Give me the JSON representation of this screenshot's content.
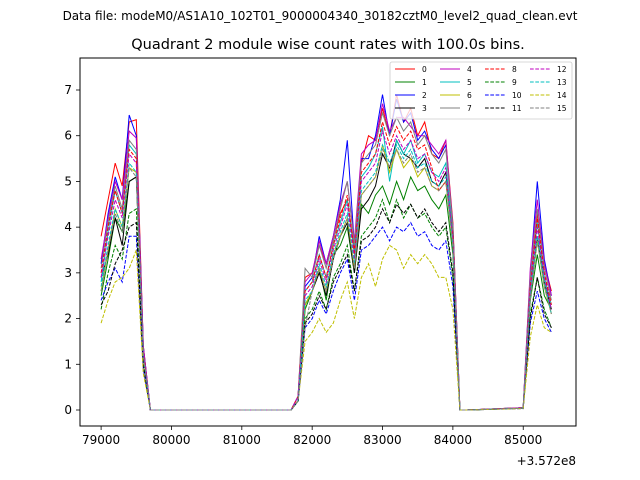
{
  "suptitle": "Data file: modeM0/AS1A10_102T01_9000004340_30182cztM0_level2_quad_clean.evt",
  "chart_data": {
    "type": "line",
    "title": "Quadrant 2 module wise count rates with 100.0s bins.",
    "xlabel": "",
    "ylabel": "",
    "x_offset_label": "+3.572e8",
    "xlim": [
      78700,
      85750
    ],
    "ylim": [
      -0.35,
      7.7
    ],
    "x_ticks": [
      79000,
      80000,
      81000,
      82000,
      83000,
      84000,
      85000
    ],
    "x_tick_labels": [
      "79000",
      "80000",
      "81000",
      "82000",
      "83000",
      "84000",
      "85000"
    ],
    "y_ticks": [
      0,
      1,
      2,
      3,
      4,
      5,
      6,
      7
    ],
    "y_tick_labels": [
      "0",
      "1",
      "2",
      "3",
      "4",
      "5",
      "6",
      "7"
    ],
    "grid": false,
    "legend_position": "top-right",
    "x": [
      79000,
      79100,
      79200,
      79300,
      79400,
      79500,
      79600,
      79700,
      79800,
      81700,
      81800,
      81900,
      82000,
      82100,
      82200,
      82300,
      82400,
      82500,
      82600,
      82700,
      82800,
      82900,
      83000,
      83100,
      83200,
      83300,
      83400,
      83500,
      83600,
      83700,
      83800,
      83900,
      84000,
      84100,
      84200,
      85000,
      85100,
      85200,
      85300,
      85400
    ],
    "series": [
      {
        "name": "0",
        "color": "#ff0000",
        "dash": false,
        "values": [
          3.8,
          4.6,
          5.4,
          4.9,
          6.3,
          6.35,
          1.4,
          0,
          0,
          0,
          0.3,
          2.9,
          3.0,
          3.6,
          3.2,
          3.7,
          4.3,
          4.6,
          3.5,
          5.4,
          6.0,
          5.9,
          6.6,
          6.0,
          6.9,
          6.3,
          6.6,
          6.0,
          6.3,
          5.6,
          5.5,
          5.9,
          4.1,
          0,
          0,
          0.05,
          2.9,
          4.3,
          3.2,
          2.6
        ]
      },
      {
        "name": "1",
        "color": "#008000",
        "dash": false,
        "values": [
          2.5,
          3.3,
          4.2,
          3.9,
          5.0,
          5.1,
          1.2,
          0,
          0,
          0,
          0.2,
          2.2,
          2.6,
          3.1,
          2.4,
          3.4,
          3.6,
          4.0,
          3.0,
          4.5,
          4.3,
          4.7,
          4.9,
          4.5,
          5.0,
          4.6,
          5.1,
          4.8,
          4.9,
          4.6,
          4.4,
          4.7,
          3.4,
          0,
          0,
          0.04,
          2.4,
          3.4,
          2.5,
          2.2
        ]
      },
      {
        "name": "2",
        "color": "#0000ff",
        "dash": false,
        "values": [
          3.2,
          4.3,
          5.1,
          4.6,
          6.45,
          6.0,
          1.4,
          0,
          0,
          0,
          0.3,
          2.7,
          2.9,
          3.8,
          3.2,
          3.8,
          4.6,
          5.9,
          3.6,
          5.5,
          5.5,
          6.0,
          6.9,
          6.0,
          6.8,
          6.3,
          6.5,
          5.9,
          6.1,
          5.7,
          5.5,
          5.8,
          4.0,
          0,
          0,
          0.05,
          3.0,
          5.0,
          3.3,
          2.5
        ]
      },
      {
        "name": "3",
        "color": "#000000",
        "dash": false,
        "values": [
          2.9,
          3.4,
          4.2,
          3.6,
          5.0,
          5.1,
          1.3,
          0,
          0,
          0,
          0.2,
          2.3,
          2.6,
          3.0,
          2.5,
          3.3,
          3.8,
          4.1,
          3.0,
          4.4,
          4.6,
          4.9,
          5.6,
          5.3,
          5.9,
          5.6,
          5.5,
          5.3,
          5.5,
          5.0,
          4.9,
          5.2,
          3.7,
          0,
          0,
          0.04,
          2.5,
          3.8,
          2.8,
          2.2
        ]
      },
      {
        "name": "4",
        "color": "#bf00bf",
        "dash": false,
        "values": [
          3.3,
          4.2,
          5.0,
          4.6,
          6.1,
          5.95,
          1.4,
          0,
          0,
          0,
          0.3,
          2.8,
          3.0,
          3.7,
          3.2,
          3.8,
          4.5,
          5.0,
          3.7,
          5.6,
          5.8,
          5.9,
          6.7,
          6.1,
          6.4,
          6.4,
          6.2,
          6.0,
          6.0,
          5.8,
          5.6,
          5.9,
          4.0,
          0,
          0,
          0.05,
          3.1,
          4.6,
          3.2,
          2.5
        ]
      },
      {
        "name": "5",
        "color": "#00bfbf",
        "dash": false,
        "values": [
          2.8,
          3.9,
          4.8,
          4.3,
          5.8,
          5.6,
          1.3,
          0,
          0,
          0,
          0.3,
          2.6,
          2.8,
          3.4,
          2.9,
          3.6,
          4.1,
          4.6,
          3.4,
          5.1,
          5.3,
          5.6,
          6.2,
          5.0,
          5.9,
          5.6,
          5.9,
          5.4,
          5.6,
          5.2,
          5.1,
          5.4,
          3.8,
          0,
          0,
          0.05,
          2.7,
          4.1,
          2.9,
          2.3
        ]
      },
      {
        "name": "6",
        "color": "#bfbf00",
        "dash": false,
        "values": [
          2.6,
          3.5,
          4.4,
          4.0,
          5.3,
          5.2,
          1.2,
          0,
          0,
          0,
          0.2,
          2.3,
          2.6,
          3.1,
          2.6,
          3.4,
          3.8,
          4.2,
          3.1,
          4.7,
          4.9,
          5.1,
          5.8,
          5.2,
          5.7,
          5.3,
          5.5,
          5.1,
          5.3,
          4.9,
          4.8,
          5.0,
          3.6,
          0,
          0,
          0.04,
          2.5,
          3.7,
          2.7,
          2.1
        ]
      },
      {
        "name": "7",
        "color": "#808080",
        "dash": false,
        "values": [
          3.1,
          4.1,
          4.9,
          4.4,
          5.9,
          5.7,
          1.3,
          0,
          0,
          0,
          0.3,
          3.1,
          2.9,
          3.6,
          3.1,
          3.7,
          4.4,
          5.0,
          3.6,
          5.4,
          5.6,
          5.8,
          6.5,
          6.0,
          6.4,
          6.1,
          6.3,
          5.8,
          6.0,
          5.6,
          5.4,
          5.7,
          4.0,
          0,
          0,
          0.05,
          2.9,
          4.4,
          3.1,
          2.4
        ]
      },
      {
        "name": "8",
        "color": "#ff0000",
        "dash": true,
        "values": [
          3.0,
          4.0,
          4.8,
          4.3,
          5.7,
          5.5,
          1.3,
          0,
          0,
          0,
          0.3,
          2.6,
          2.8,
          3.4,
          2.9,
          3.6,
          4.2,
          4.7,
          3.4,
          5.2,
          5.4,
          5.6,
          6.3,
          5.8,
          6.2,
          5.9,
          6.1,
          5.7,
          5.8,
          5.3,
          4.8,
          5.0,
          3.8,
          0,
          0,
          0.05,
          2.7,
          4.2,
          3.0,
          2.3
        ]
      },
      {
        "name": "9",
        "color": "#008000",
        "dash": true,
        "values": [
          2.2,
          3.0,
          3.6,
          3.3,
          4.3,
          4.4,
          1.0,
          0,
          0,
          0,
          0.2,
          2.0,
          2.2,
          2.6,
          2.2,
          2.9,
          3.2,
          3.6,
          2.6,
          3.8,
          4.0,
          4.2,
          4.6,
          4.1,
          4.6,
          4.2,
          4.5,
          4.2,
          4.3,
          4.0,
          3.8,
          4.0,
          2.9,
          0,
          0,
          0.04,
          2.1,
          2.9,
          2.2,
          1.8
        ]
      },
      {
        "name": "10",
        "color": "#0000ff",
        "dash": true,
        "values": [
          2.4,
          2.8,
          3.1,
          2.8,
          3.8,
          3.8,
          0.9,
          0,
          0,
          0,
          0.2,
          1.8,
          2.0,
          2.4,
          2.1,
          2.6,
          3.0,
          3.3,
          2.4,
          3.5,
          3.6,
          3.8,
          4.0,
          3.7,
          4.0,
          3.9,
          4.1,
          3.8,
          3.9,
          3.6,
          3.5,
          3.7,
          2.7,
          0,
          0,
          0.03,
          1.9,
          2.6,
          2.0,
          1.7
        ]
      },
      {
        "name": "11",
        "color": "#000000",
        "dash": true,
        "values": [
          2.3,
          2.6,
          3.2,
          3.5,
          4.0,
          4.1,
          1.0,
          0,
          0,
          0,
          0.2,
          1.9,
          2.1,
          2.5,
          2.2,
          2.8,
          3.1,
          3.4,
          2.6,
          3.7,
          3.8,
          4.0,
          4.4,
          4.1,
          4.5,
          4.3,
          4.5,
          4.2,
          4.4,
          4.1,
          3.9,
          4.1,
          3.0,
          0,
          0,
          0.04,
          2.0,
          2.9,
          2.1,
          1.8
        ]
      },
      {
        "name": "12",
        "color": "#bf00bf",
        "dash": true,
        "values": [
          2.9,
          3.8,
          4.6,
          4.2,
          5.6,
          5.4,
          1.3,
          0,
          0,
          0,
          0.3,
          2.5,
          2.7,
          3.3,
          2.8,
          3.5,
          4.0,
          4.5,
          3.3,
          5.0,
          5.2,
          5.4,
          6.1,
          5.6,
          6.0,
          5.7,
          5.9,
          5.5,
          5.6,
          5.2,
          5.0,
          5.3,
          3.7,
          0,
          0,
          0.05,
          2.6,
          4.0,
          2.9,
          2.2
        ]
      },
      {
        "name": "13",
        "color": "#00bfbf",
        "dash": true,
        "values": [
          2.7,
          3.6,
          4.4,
          4.0,
          5.4,
          5.2,
          1.2,
          0,
          0,
          0,
          0.2,
          2.4,
          2.6,
          3.2,
          2.7,
          3.4,
          3.9,
          4.3,
          3.2,
          4.8,
          5.0,
          5.2,
          5.8,
          5.4,
          5.8,
          5.5,
          5.7,
          5.3,
          5.4,
          5.0,
          4.9,
          5.1,
          3.6,
          0,
          0,
          0.04,
          2.5,
          3.8,
          2.8,
          2.1
        ]
      },
      {
        "name": "14",
        "color": "#bfbf00",
        "dash": true,
        "values": [
          1.9,
          2.4,
          2.8,
          2.9,
          3.1,
          3.5,
          0.8,
          0,
          0,
          0,
          0.2,
          1.5,
          1.7,
          2.0,
          1.7,
          1.9,
          2.4,
          2.8,
          2.0,
          2.9,
          3.2,
          2.7,
          3.3,
          3.6,
          3.5,
          3.1,
          3.4,
          3.2,
          3.4,
          3.2,
          2.9,
          2.9,
          2.2,
          0,
          0,
          0.03,
          1.6,
          2.3,
          1.8,
          1.7
        ]
      },
      {
        "name": "15",
        "color": "#808080",
        "dash": true,
        "values": [
          2.6,
          3.5,
          4.3,
          3.9,
          5.3,
          5.1,
          1.2,
          0,
          0,
          0,
          0.2,
          1.8,
          2.6,
          3.1,
          2.6,
          3.3,
          3.8,
          4.2,
          3.1,
          4.7,
          4.9,
          5.1,
          5.7,
          5.3,
          5.7,
          5.4,
          5.6,
          5.2,
          5.3,
          4.9,
          4.8,
          5.0,
          3.6,
          0,
          0,
          0.04,
          2.4,
          3.7,
          2.7,
          2.1
        ]
      }
    ]
  }
}
